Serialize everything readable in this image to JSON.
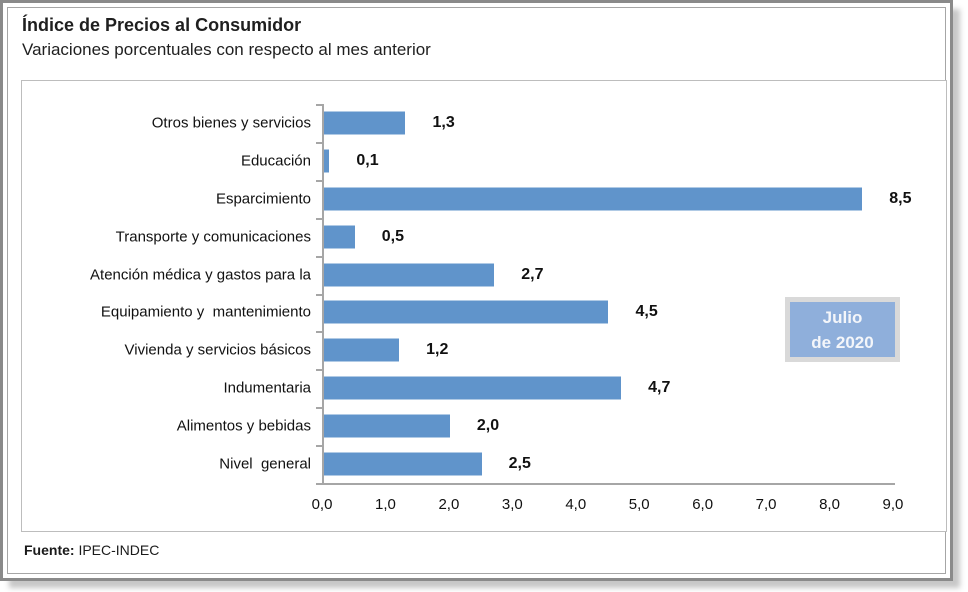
{
  "header": {
    "title": "Índice de Precios al Consumidor",
    "subtitle": "Variaciones porcentuales con respecto al mes anterior"
  },
  "legend": {
    "line1": "Julio",
    "line2": "de 2020"
  },
  "footer": {
    "source_label": "Fuente:",
    "source_value": " IPEC-INDEC"
  },
  "colors": {
    "bar": "#6094cb",
    "legend_bg": "#8fafdb",
    "legend_frame": "#d9d9d9",
    "legend_text": "#f4f6fa",
    "axis": "#a6a6a6"
  },
  "chart_data": {
    "type": "bar",
    "orientation": "horizontal",
    "title": "Índice de Precios al Consumidor",
    "subtitle": "Variaciones porcentuales con respecto al mes anterior",
    "categories": [
      "Otros bienes y servicios",
      "Educación",
      "Esparcimiento",
      "Transporte y comunicaciones",
      "Atención médica y gastos para la",
      "Equipamiento y  mantenimiento",
      "Vivienda y servicios básicos",
      "Indumentaria",
      "Alimentos y bebidas",
      "Nivel  general"
    ],
    "values": [
      1.3,
      0.1,
      8.5,
      0.5,
      2.7,
      4.5,
      1.2,
      4.7,
      2.0,
      2.5
    ],
    "value_labels": [
      "1,3",
      "0,1",
      "8,5",
      "0,5",
      "2,7",
      "4,5",
      "1,2",
      "4,7",
      "2,0",
      "2,5"
    ],
    "x_ticks": [
      "0,0",
      "1,0",
      "2,0",
      "3,0",
      "4,0",
      "5,0",
      "6,0",
      "7,0",
      "8,0",
      "9,0"
    ],
    "xlim": [
      0,
      9
    ],
    "grid": false,
    "legend_entries": [
      "Julio de 2020"
    ],
    "legend_position": "middle-right",
    "source": "Fuente: IPEC-INDEC"
  }
}
